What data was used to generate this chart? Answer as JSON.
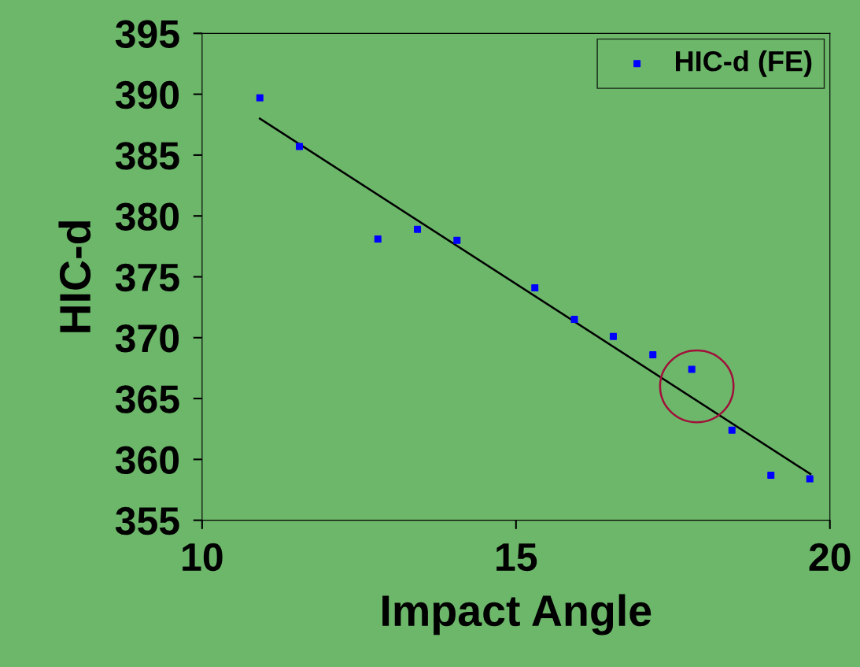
{
  "chart_data": {
    "type": "scatter",
    "xlabel": "Impact Angle",
    "ylabel": "HIC-d",
    "series": [
      {
        "name": "HIC-d (FE)",
        "color": "#0000ff",
        "marker": "square",
        "x": [
          10.92,
          11.55,
          12.8,
          13.43,
          14.06,
          15.3,
          15.93,
          16.55,
          17.18,
          17.8,
          18.44,
          19.06,
          19.68
        ],
        "values": [
          389.7,
          385.7,
          378.1,
          378.9,
          378.0,
          374.1,
          371.5,
          370.1,
          368.6,
          367.4,
          362.4,
          358.7,
          358.4
        ]
      },
      {
        "type": "line",
        "color": "#000000",
        "x": [
          10.92,
          19.69
        ],
        "values": [
          388.0,
          358.8
        ]
      }
    ],
    "xlim": [
      10,
      20
    ],
    "xticks": [
      10,
      15,
      20
    ],
    "ylim": [
      355,
      395
    ],
    "yticks": [
      355,
      360,
      365,
      370,
      375,
      380,
      385,
      390,
      395
    ],
    "grid": false,
    "legend": "top right"
  }
}
